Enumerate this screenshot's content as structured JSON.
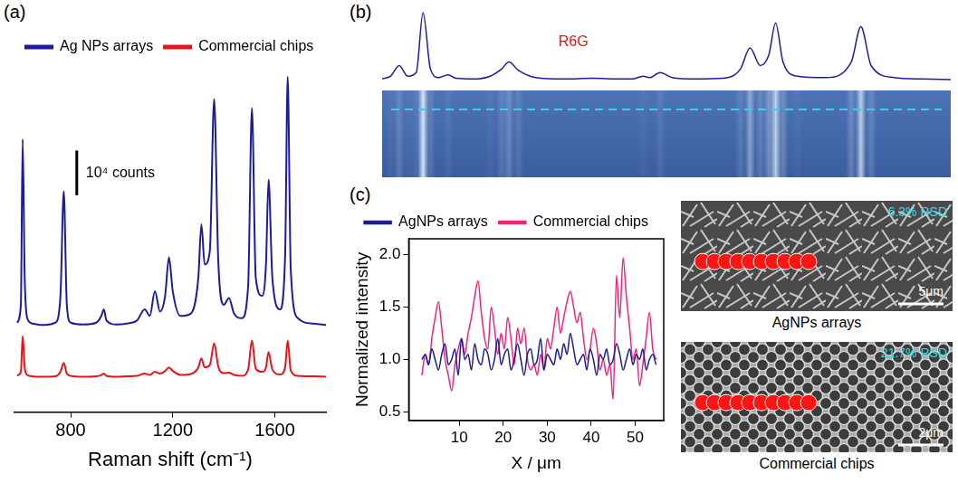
{
  "chart_data": [
    {
      "type": "line",
      "panel": "(a)",
      "x_label": "Raman shift (cm⁻¹)",
      "xlim": [
        580,
        1800
      ],
      "xticks": [
        800,
        1200,
        1600
      ],
      "ylim": [
        0,
        78000
      ],
      "yticks": [],
      "tick_labels": "x",
      "grid": false,
      "legend": "upper left",
      "scale_bar": {
        "value": 10000,
        "label": "10⁴ counts"
      },
      "x": [
        590,
        605,
        612,
        620,
        630,
        650,
        680,
        700,
        740,
        760,
        773,
        785,
        800,
        850,
        900,
        920,
        930,
        940,
        980,
        1020,
        1060,
        1090,
        1110,
        1130,
        1150,
        1170,
        1185,
        1200,
        1230,
        1270,
        1300,
        1312,
        1325,
        1345,
        1362,
        1378,
        1400,
        1420,
        1440,
        1470,
        1495,
        1510,
        1525,
        1550,
        1565,
        1575,
        1590,
        1620,
        1640,
        1650,
        1662,
        1690,
        1750,
        1800
      ],
      "series": [
        {
          "name": "Ag NPs arrays",
          "color": "#1c1ca0",
          "values": [
            20000,
            24000,
            61000,
            30000,
            21000,
            19800,
            19500,
            19500,
            20000,
            26000,
            49400,
            24000,
            20000,
            19600,
            20000,
            21500,
            23000,
            20500,
            19600,
            19800,
            20500,
            23000,
            21500,
            27000,
            22500,
            26000,
            34600,
            27000,
            21500,
            22000,
            30000,
            42000,
            33000,
            36000,
            70000,
            34000,
            24000,
            25500,
            22000,
            21000,
            28000,
            68000,
            30000,
            26000,
            33000,
            52000,
            30000,
            23000,
            35000,
            75000,
            32000,
            21000,
            19800,
            19500
          ]
        },
        {
          "name": "Commercial chips",
          "color": "#e8141b",
          "values": [
            8200,
            9000,
            17000,
            10000,
            8300,
            8000,
            7900,
            7900,
            8000,
            9000,
            11000,
            8600,
            8100,
            7900,
            8000,
            8300,
            8600,
            8100,
            7900,
            8000,
            8100,
            8600,
            8300,
            9000,
            8600,
            9200,
            10000,
            9200,
            8300,
            8500,
            10000,
            12000,
            10000,
            10500,
            15400,
            10200,
            8700,
            8800,
            8300,
            8100,
            9500,
            16000,
            9700,
            9000,
            10000,
            13400,
            9500,
            8400,
            10000,
            16000,
            9300,
            8100,
            8000,
            7900
          ]
        }
      ]
    },
    {
      "type": "line",
      "panel": "(b)",
      "tick_labels": false,
      "grid": false,
      "xlim": [
        0,
        100
      ],
      "xticks": [],
      "ylim": [
        0,
        1.05
      ],
      "yticks": [],
      "color": "#1c1ca0",
      "annotations": [
        {
          "text": "R6G",
          "color": "#e8141b"
        }
      ],
      "x": [
        0,
        1.5,
        3,
        4.5,
        6,
        7.2,
        8.5,
        10,
        11.6,
        13,
        16,
        19,
        21,
        22.3,
        24,
        27,
        32,
        37,
        42,
        44,
        45.9,
        47,
        48.9,
        51,
        55,
        60,
        63,
        64.7,
        66.5,
        68,
        69.2,
        70.5,
        73,
        78,
        82.5,
        84.2,
        86,
        90,
        95,
        100
      ],
      "values": [
        0.06,
        0.1,
        0.25,
        0.1,
        0.15,
        1.0,
        0.2,
        0.08,
        0.12,
        0.07,
        0.06,
        0.1,
        0.2,
        0.3,
        0.18,
        0.08,
        0.06,
        0.07,
        0.06,
        0.06,
        0.1,
        0.08,
        0.15,
        0.08,
        0.06,
        0.07,
        0.2,
        0.5,
        0.25,
        0.4,
        0.85,
        0.3,
        0.1,
        0.08,
        0.3,
        0.8,
        0.25,
        0.08,
        0.06,
        0.05
      ]
    },
    {
      "type": "line",
      "panel": "(c)",
      "x_label": "X / μm",
      "y_label": "Normalized intensity",
      "xlim": [
        -1.5,
        56.5
      ],
      "xticks": [
        10,
        20,
        30,
        40,
        50
      ],
      "ylim": [
        0.42,
        2.15
      ],
      "yticks": [
        {
          "value": 0.5,
          "label": "0.5"
        },
        {
          "value": 1,
          "label": "1.0"
        },
        {
          "value": 1.5,
          "label": "1.5"
        },
        {
          "value": 2,
          "label": "2.0"
        }
      ],
      "grid": false,
      "legend": "top",
      "x": [
        1.5,
        2.25,
        3,
        3.75,
        4.5,
        5.25,
        6,
        6.75,
        7.5,
        8.25,
        9,
        9.75,
        10.5,
        11.25,
        12,
        12.75,
        13.5,
        14.25,
        15,
        15.75,
        16.5,
        17.25,
        18,
        18.75,
        19.5,
        20.25,
        21,
        21.75,
        22.5,
        23.25,
        24,
        24.75,
        25.5,
        26.25,
        27,
        27.75,
        28.5,
        29.25,
        30,
        30.75,
        31.5,
        32.25,
        33,
        33.75,
        34.5,
        35.25,
        36,
        36.75,
        37.5,
        38.25,
        39,
        39.75,
        40.5,
        41.25,
        42,
        42.75,
        43.5,
        44.25,
        45,
        45.75,
        46.5,
        47.25,
        48,
        48.75,
        49.5,
        50.25,
        51,
        51.75,
        52.5,
        53.25,
        54,
        54.75
      ],
      "series": [
        {
          "name": "AgNPs arrays",
          "color": "#1c1c8f",
          "values": [
            1.0,
            1.05,
            0.95,
            1.1,
            1.0,
            0.9,
            1.05,
            1.15,
            0.95,
            1.0,
            1.1,
            0.85,
            1.2,
            1.0,
            1.05,
            0.9,
            1.15,
            1.0,
            0.95,
            1.1,
            1.05,
            0.9,
            1.0,
            1.2,
            0.95,
            1.05,
            1.1,
            0.9,
            1.0,
            1.15,
            1.0,
            0.85,
            1.05,
            1.1,
            0.95,
            1.0,
            1.2,
            0.9,
            1.05,
            1.0,
            0.95,
            1.1,
            1.0,
            1.15,
            1.05,
            1.25,
            1.1,
            0.95,
            1.0,
            1.05,
            0.9,
            1.1,
            1.0,
            0.85,
            1.05,
            1.0,
            1.1,
            0.95,
            1.0,
            1.15,
            1.05,
            0.9,
            1.0,
            1.1,
            0.95,
            1.05,
            1.0,
            1.1,
            0.9,
            1.0,
            1.05,
            0.95
          ]
        },
        {
          "name": "Commercial chips",
          "color": "#f0237d",
          "values": [
            0.85,
            1.05,
            0.95,
            1.2,
            1.4,
            1.55,
            1.3,
            1.0,
            0.85,
            0.7,
            0.95,
            1.1,
            1.2,
            1.05,
            1.25,
            1.4,
            1.6,
            1.75,
            1.45,
            1.2,
            1.1,
            1.5,
            1.3,
            1.05,
            1.25,
            1.1,
            1.4,
            1.2,
            0.95,
            1.3,
            1.15,
            1.3,
            1.0,
            0.9,
            0.95,
            0.85,
            1.05,
            0.9,
            1.2,
            1.1,
            1.3,
            1.5,
            1.25,
            1.4,
            1.55,
            1.65,
            1.5,
            1.35,
            1.45,
            1.2,
            1.0,
            1.1,
            1.3,
            1.15,
            0.9,
            1.0,
            0.85,
            0.95,
            0.62,
            1.8,
            1.4,
            1.97,
            1.6,
            1.3,
            1.0,
            1.1,
            0.75,
            0.95,
            1.2,
            1.45,
            1.1,
            1.0
          ]
        }
      ]
    }
  ],
  "images": [
    {
      "caption": "AgNPs arrays",
      "rsd": "6.3% RSD",
      "scale_bar": "5μm"
    },
    {
      "caption": "Commercial chips",
      "rsd": "21.7% RSD",
      "scale_bar": "2μm"
    }
  ]
}
